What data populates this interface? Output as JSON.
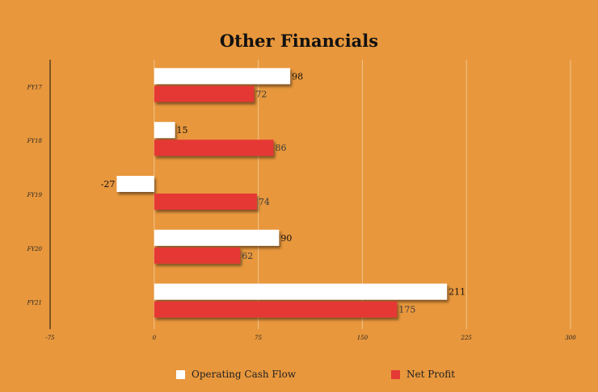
{
  "chart_data": {
    "type": "bar",
    "orientation": "horizontal",
    "title": "Other Financials",
    "categories": [
      "FY17",
      "FY18",
      "FY19",
      "FY20",
      "FY21"
    ],
    "series": [
      {
        "name": "Operating Cash Flow",
        "values": [
          98,
          15,
          -27,
          90,
          211
        ],
        "color": "#FFFFFF"
      },
      {
        "name": "Net Profit",
        "values": [
          72,
          86,
          74,
          62,
          175
        ],
        "color": "#E53935"
      }
    ],
    "xlim": [
      -75,
      300
    ],
    "xticks": [
      -75,
      0,
      75,
      150,
      225,
      300
    ],
    "grid": true,
    "legend_position": "bottom"
  }
}
